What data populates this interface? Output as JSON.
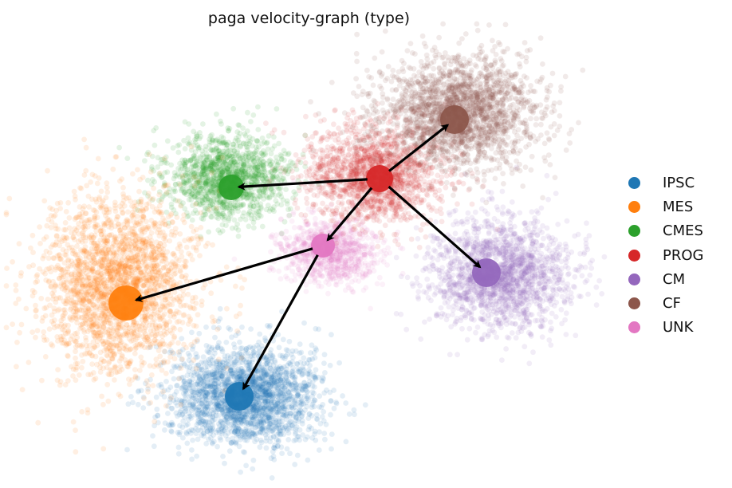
{
  "chart_data": {
    "type": "scatter",
    "title": "paga velocity-graph (type)",
    "xlabel": "",
    "ylabel": "",
    "grid": false,
    "legend_position": "right",
    "categories": [
      "IPSC",
      "MES",
      "CMES",
      "PROG",
      "CM",
      "CF",
      "UNK"
    ],
    "colors": {
      "IPSC": "#1f77b4",
      "MES": "#ff7f0e",
      "CMES": "#2ca02c",
      "PROG": "#d62728",
      "CM": "#9467bd",
      "CF": "#8c564b",
      "UNK": "#e377c2"
    },
    "edges": [
      {
        "from": "PROG",
        "to": "CF"
      },
      {
        "from": "PROG",
        "to": "CMES"
      },
      {
        "from": "PROG",
        "to": "UNK"
      },
      {
        "from": "PROG",
        "to": "CM"
      },
      {
        "from": "UNK",
        "to": "MES"
      },
      {
        "from": "UNK",
        "to": "IPSC"
      }
    ]
  }
}
